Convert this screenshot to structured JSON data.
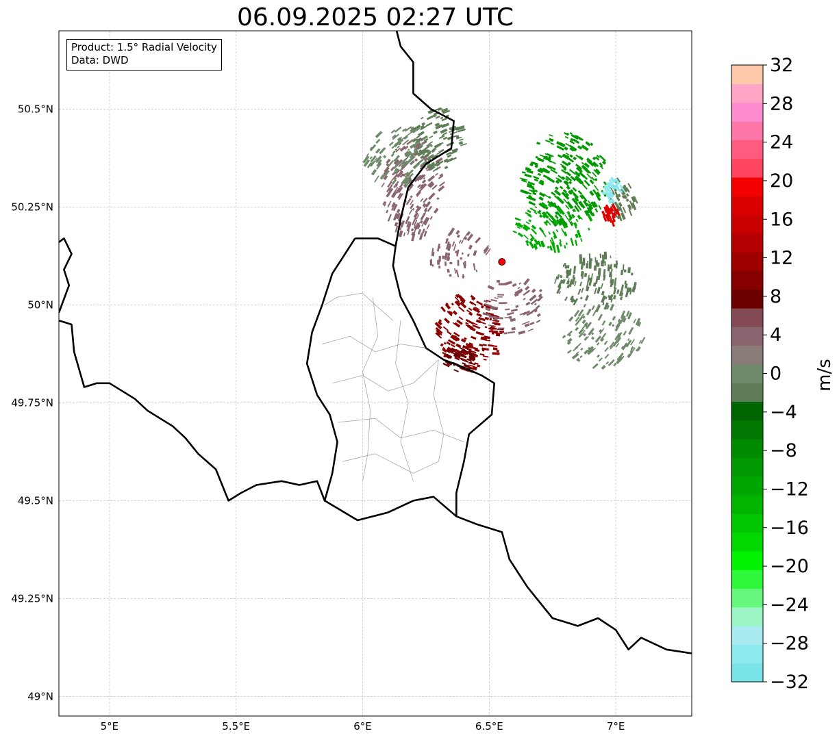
{
  "title": "06.09.2025 02:27 UTC",
  "infobox": {
    "product": "Product: 1.5° Radial Velocity",
    "source": "Data: DWD"
  },
  "map": {
    "lon_range": [
      4.8,
      7.3
    ],
    "lat_range": [
      48.95,
      50.7
    ],
    "xticks": [
      {
        "v": 5.0,
        "label": "5°E"
      },
      {
        "v": 5.5,
        "label": "5.5°E"
      },
      {
        "v": 6.0,
        "label": "6°E"
      },
      {
        "v": 6.5,
        "label": "6.5°E"
      },
      {
        "v": 7.0,
        "label": "7°E"
      }
    ],
    "yticks": [
      {
        "v": 49.0,
        "label": "49°N"
      },
      {
        "v": 49.25,
        "label": "49.25°N"
      },
      {
        "v": 49.5,
        "label": "49.5°N"
      },
      {
        "v": 49.75,
        "label": "49.75°N"
      },
      {
        "v": 50.0,
        "label": "50°N"
      },
      {
        "v": 50.25,
        "label": "50.25°N"
      },
      {
        "v": 50.5,
        "label": "50.5°N"
      }
    ],
    "grid": true,
    "radar_site": {
      "lon": 6.55,
      "lat": 50.11,
      "color": "#ff0000"
    },
    "country_borders": [
      [
        [
          4.8,
          50.16
        ],
        [
          4.82,
          50.17
        ],
        [
          4.85,
          50.13
        ],
        [
          4.82,
          50.09
        ],
        [
          4.84,
          50.05
        ],
        [
          4.8,
          49.98
        ]
      ],
      [
        [
          4.8,
          49.96
        ],
        [
          4.85,
          49.95
        ],
        [
          4.86,
          49.88
        ],
        [
          4.9,
          49.79
        ],
        [
          4.95,
          49.8
        ],
        [
          5.0,
          49.8
        ],
        [
          5.05,
          49.78
        ],
        [
          5.1,
          49.76
        ],
        [
          5.15,
          49.73
        ],
        [
          5.25,
          49.69
        ],
        [
          5.3,
          49.66
        ],
        [
          5.35,
          49.62
        ],
        [
          5.42,
          49.58
        ],
        [
          5.47,
          49.5
        ],
        [
          5.52,
          49.52
        ],
        [
          5.58,
          49.54
        ],
        [
          5.68,
          49.55
        ],
        [
          5.75,
          49.54
        ],
        [
          5.82,
          49.55
        ],
        [
          5.85,
          49.5
        ],
        [
          5.98,
          49.45
        ],
        [
          6.1,
          49.47
        ],
        [
          6.2,
          49.5
        ],
        [
          6.28,
          49.51
        ],
        [
          6.37,
          49.46
        ],
        [
          6.45,
          49.44
        ],
        [
          6.55,
          49.42
        ],
        [
          6.58,
          49.35
        ],
        [
          6.65,
          49.28
        ],
        [
          6.75,
          49.2
        ],
        [
          6.85,
          49.18
        ],
        [
          6.93,
          49.2
        ],
        [
          7.0,
          49.17
        ],
        [
          7.05,
          49.12
        ],
        [
          7.1,
          49.15
        ],
        [
          7.2,
          49.12
        ],
        [
          7.3,
          49.11
        ]
      ],
      [
        [
          6.37,
          49.46
        ],
        [
          6.37,
          49.52
        ],
        [
          6.4,
          49.6
        ],
        [
          6.42,
          49.67
        ],
        [
          6.51,
          49.72
        ],
        [
          6.52,
          49.8
        ],
        [
          6.47,
          49.82
        ],
        [
          6.4,
          49.84
        ],
        [
          6.32,
          49.86
        ],
        [
          6.25,
          49.89
        ],
        [
          6.2,
          49.96
        ],
        [
          6.15,
          50.02
        ],
        [
          6.12,
          50.1
        ],
        [
          6.13,
          50.15
        ],
        [
          6.06,
          50.17
        ],
        [
          5.97,
          50.17
        ]
      ],
      [
        [
          5.97,
          50.17
        ],
        [
          5.92,
          50.12
        ],
        [
          5.88,
          50.08
        ],
        [
          5.84,
          50.0
        ],
        [
          5.8,
          49.93
        ],
        [
          5.78,
          49.85
        ],
        [
          5.82,
          49.77
        ],
        [
          5.87,
          49.72
        ],
        [
          5.9,
          49.65
        ],
        [
          5.88,
          49.57
        ],
        [
          5.85,
          49.5
        ]
      ],
      [
        [
          6.13,
          50.15
        ],
        [
          6.15,
          50.22
        ],
        [
          6.18,
          50.3
        ],
        [
          6.25,
          50.36
        ],
        [
          6.35,
          50.4
        ],
        [
          6.36,
          50.47
        ],
        [
          6.27,
          50.5
        ],
        [
          6.2,
          50.54
        ],
        [
          6.2,
          50.62
        ],
        [
          6.15,
          50.66
        ],
        [
          6.13,
          50.71
        ]
      ]
    ],
    "lu_districts": [
      [
        [
          5.85,
          50.0
        ],
        [
          5.9,
          50.02
        ],
        [
          6.0,
          50.03
        ],
        [
          6.05,
          50.0
        ],
        [
          6.12,
          49.96
        ]
      ],
      [
        [
          5.84,
          49.9
        ],
        [
          5.95,
          49.92
        ],
        [
          6.05,
          49.88
        ],
        [
          6.15,
          49.9
        ],
        [
          6.25,
          49.89
        ]
      ],
      [
        [
          5.88,
          49.8
        ],
        [
          6.0,
          49.82
        ],
        [
          6.1,
          49.78
        ],
        [
          6.2,
          49.8
        ],
        [
          6.3,
          49.86
        ]
      ],
      [
        [
          5.9,
          49.7
        ],
        [
          6.05,
          49.71
        ],
        [
          6.15,
          49.66
        ],
        [
          6.28,
          49.68
        ],
        [
          6.4,
          49.65
        ]
      ],
      [
        [
          5.92,
          49.6
        ],
        [
          6.05,
          49.62
        ],
        [
          6.2,
          49.57
        ],
        [
          6.3,
          49.6
        ]
      ],
      [
        [
          6.04,
          50.02
        ],
        [
          6.06,
          49.92
        ],
        [
          6.0,
          49.83
        ],
        [
          6.03,
          49.73
        ],
        [
          6.02,
          49.62
        ],
        [
          6.0,
          49.55
        ]
      ],
      [
        [
          6.15,
          49.96
        ],
        [
          6.13,
          49.85
        ],
        [
          6.18,
          49.75
        ],
        [
          6.15,
          49.65
        ],
        [
          6.2,
          49.55
        ]
      ],
      [
        [
          6.3,
          49.86
        ],
        [
          6.28,
          49.77
        ],
        [
          6.32,
          49.67
        ],
        [
          6.3,
          49.6
        ]
      ]
    ],
    "echo_clusters": [
      {
        "lon": 6.2,
        "lat": 50.3,
        "rx": 0.12,
        "ry": 0.13,
        "color": "#8a6570",
        "density": 0.55
      },
      {
        "lon": 6.15,
        "lat": 50.38,
        "rx": 0.14,
        "ry": 0.08,
        "color": "#6e8a6a",
        "density": 0.45
      },
      {
        "lon": 6.3,
        "lat": 50.42,
        "rx": 0.1,
        "ry": 0.08,
        "color": "#5e7c56",
        "density": 0.5
      },
      {
        "lon": 6.8,
        "lat": 50.32,
        "rx": 0.17,
        "ry": 0.12,
        "color": "#009900",
        "density": 0.6
      },
      {
        "lon": 6.75,
        "lat": 50.2,
        "rx": 0.16,
        "ry": 0.06,
        "color": "#00aa00",
        "density": 0.35
      },
      {
        "lon": 6.92,
        "lat": 50.06,
        "rx": 0.16,
        "ry": 0.07,
        "color": "#5e7c56",
        "density": 0.5
      },
      {
        "lon": 6.95,
        "lat": 49.92,
        "rx": 0.16,
        "ry": 0.08,
        "color": "#6e8a6a",
        "density": 0.4
      },
      {
        "lon": 6.42,
        "lat": 49.93,
        "rx": 0.13,
        "ry": 0.1,
        "color": "#8b0000",
        "density": 0.55
      },
      {
        "lon": 6.38,
        "lat": 49.86,
        "rx": 0.06,
        "ry": 0.03,
        "color": "#6b0000",
        "density": 0.6
      },
      {
        "lon": 6.38,
        "lat": 50.13,
        "rx": 0.12,
        "ry": 0.06,
        "color": "#8a6570",
        "density": 0.3
      },
      {
        "lon": 6.6,
        "lat": 50.0,
        "rx": 0.12,
        "ry": 0.08,
        "color": "#8a6570",
        "density": 0.25
      },
      {
        "lon": 7.02,
        "lat": 50.27,
        "rx": 0.06,
        "ry": 0.05,
        "color": "#5e7c56",
        "density": 0.4
      },
      {
        "lon": 6.99,
        "lat": 50.29,
        "rx": 0.04,
        "ry": 0.03,
        "color": "#88e8ee",
        "density": 0.6
      },
      {
        "lon": 6.98,
        "lat": 50.23,
        "rx": 0.03,
        "ry": 0.025,
        "color": "#e00000",
        "density": 0.7
      }
    ]
  },
  "colorbar": {
    "label": "m/s",
    "vmin": -32,
    "vmax": 32,
    "ticks": [
      -32,
      -28,
      -24,
      -20,
      -16,
      -12,
      -8,
      -4,
      0,
      4,
      8,
      12,
      16,
      20,
      24,
      28,
      32
    ],
    "tick_labels": [
      "−32",
      "−28",
      "−24",
      "−20",
      "−16",
      "−12",
      "−8",
      "−4",
      "0",
      "4",
      "8",
      "12",
      "16",
      "20",
      "24",
      "28",
      "32"
    ],
    "colors": [
      "#7ae3e8",
      "#8ceaed",
      "#a9ebf0",
      "#9cf5c4",
      "#66f57d",
      "#2ff83c",
      "#00f200",
      "#00d800",
      "#00c700",
      "#00b400",
      "#00a600",
      "#009800",
      "#008a00",
      "#007800",
      "#006400",
      "#5e7c56",
      "#6e8a6a",
      "#897b77",
      "#8a6570",
      "#844a53",
      "#6b0000",
      "#860000",
      "#9e0000",
      "#b40000",
      "#c80000",
      "#da0000",
      "#f40000",
      "#ff4560",
      "#ff5a80",
      "#ff77a8",
      "#ff8ccf",
      "#ffa6c6",
      "#ffcaac"
    ]
  }
}
